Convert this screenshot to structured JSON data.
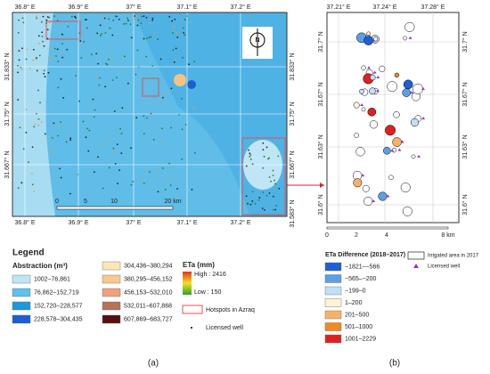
{
  "map_a": {
    "top_labels": [
      "36.8° E",
      "36.9° E",
      "37° E",
      "37.1° E",
      "37.2° E"
    ],
    "bottom_labels": [
      "36.8° E",
      "36.9° E",
      "37° E",
      "37.1° E",
      "37.2° E"
    ],
    "left_labels": [
      "31.833° N",
      "31.75° N",
      "31.667° N"
    ],
    "right_labels": [
      "31.833° N",
      "31.75° N",
      "31.667° N",
      "31.583° N"
    ],
    "scale_labels": [
      "0",
      "5",
      "10",
      "20 km"
    ],
    "north": "N"
  },
  "legend_a": {
    "title": "Legend",
    "abstraction_title": "Abstraction (m³)",
    "abstraction_classes": [
      "1002–76,861",
      "76,862–152,719",
      "152,720–228,577",
      "228,578–304,435",
      "304,436–380,294",
      "380,295–456,152",
      "456,153–532,010",
      "532,011–607,868",
      "607,869–683,727"
    ],
    "abstraction_colors": [
      "#bfe6f7",
      "#5cc2ee",
      "#1e9ad8",
      "#1a5fd6",
      "#fbe6b8",
      "#f9c98c",
      "#f2a07c",
      "#b5735a",
      "#5a0e0e"
    ],
    "eta_title": "ETa (mm)",
    "eta_high": "High : 2416",
    "eta_low": "Low : 150",
    "hotspots": "Hotspots in Azraq",
    "well": "Licensed well"
  },
  "map_b": {
    "top_labels": [
      "37.21° E",
      "37.24° E",
      "37.28° E"
    ],
    "left_labels": [
      "31.7° N",
      "31.67° N",
      "31.63° N",
      "31.6° N"
    ],
    "right_labels": [
      "31.7° N",
      "31.67° N",
      "31.63° N",
      "31.6° N"
    ],
    "scale_labels": [
      "0",
      "2",
      "4",
      "8 km"
    ]
  },
  "legend_b": {
    "title": "ETa Difference (2018–2017)",
    "classes": [
      "−1821–−566",
      "−565–−200",
      "−199–0",
      "1–200",
      "201–500",
      "501–1000",
      "1001–2229"
    ],
    "colors": [
      "#1f5fd6",
      "#5aa0e8",
      "#bfe0f7",
      "#fdf3d6",
      "#f7b266",
      "#f08a1e",
      "#e02020"
    ],
    "irrigated": "Irrigated area in 2017",
    "well": "Licensed well"
  },
  "captions": [
    "(a)",
    "(b)"
  ]
}
